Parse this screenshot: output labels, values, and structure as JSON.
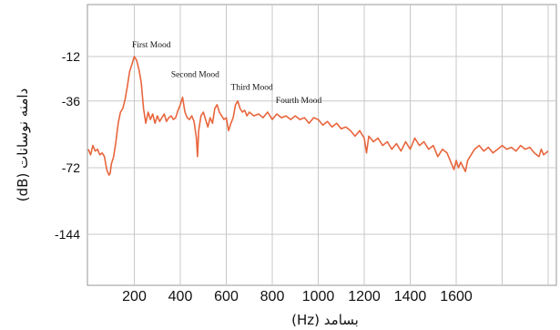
{
  "chart_data": {
    "type": "line",
    "title": "",
    "xlabel": "بسامد (Hz)",
    "ylabel": "دامنه نوسانات (dB)",
    "xlim": [
      0,
      2000
    ],
    "ylim": [
      -170,
      0
    ],
    "grid": true,
    "series": [
      {
        "color": "#e8663d",
        "points": [
          [
            0,
            -62
          ],
          [
            10,
            -65
          ],
          [
            20,
            -60
          ],
          [
            30,
            -63
          ],
          [
            40,
            -62
          ],
          [
            50,
            -65
          ],
          [
            60,
            -64
          ],
          [
            70,
            -66
          ],
          [
            80,
            -74
          ],
          [
            90,
            -80
          ],
          [
            95,
            -78
          ],
          [
            100,
            -70
          ],
          [
            110,
            -66
          ],
          [
            120,
            -58
          ],
          [
            130,
            -48
          ],
          [
            140,
            -42
          ],
          [
            150,
            -40
          ],
          [
            160,
            -35
          ],
          [
            170,
            -28
          ],
          [
            180,
            -20
          ],
          [
            190,
            -16
          ],
          [
            200,
            -12
          ],
          [
            210,
            -14
          ],
          [
            220,
            -19
          ],
          [
            230,
            -26
          ],
          [
            240,
            -40
          ],
          [
            250,
            -48
          ],
          [
            260,
            -42
          ],
          [
            270,
            -46
          ],
          [
            280,
            -43
          ],
          [
            290,
            -48
          ],
          [
            300,
            -44
          ],
          [
            310,
            -47
          ],
          [
            320,
            -45
          ],
          [
            330,
            -43
          ],
          [
            340,
            -47
          ],
          [
            350,
            -45
          ],
          [
            360,
            -44
          ],
          [
            370,
            -46
          ],
          [
            380,
            -45
          ],
          [
            390,
            -41
          ],
          [
            400,
            -38
          ],
          [
            410,
            -34
          ],
          [
            420,
            -42
          ],
          [
            430,
            -45
          ],
          [
            440,
            -46
          ],
          [
            450,
            -44
          ],
          [
            460,
            -47
          ],
          [
            470,
            -56
          ],
          [
            475,
            -66
          ],
          [
            480,
            -52
          ],
          [
            490,
            -44
          ],
          [
            500,
            -42
          ],
          [
            510,
            -46
          ],
          [
            520,
            -50
          ],
          [
            530,
            -45
          ],
          [
            540,
            -48
          ],
          [
            550,
            -40
          ],
          [
            560,
            -38
          ],
          [
            570,
            -42
          ],
          [
            580,
            -44
          ],
          [
            590,
            -46
          ],
          [
            600,
            -45
          ],
          [
            610,
            -52
          ],
          [
            620,
            -48
          ],
          [
            630,
            -45
          ],
          [
            640,
            -38
          ],
          [
            650,
            -36
          ],
          [
            660,
            -40
          ],
          [
            670,
            -42
          ],
          [
            680,
            -41
          ],
          [
            690,
            -44
          ],
          [
            700,
            -42
          ],
          [
            720,
            -44
          ],
          [
            740,
            -43
          ],
          [
            760,
            -45
          ],
          [
            780,
            -42
          ],
          [
            800,
            -46
          ],
          [
            820,
            -43
          ],
          [
            840,
            -45
          ],
          [
            860,
            -44
          ],
          [
            880,
            -46
          ],
          [
            900,
            -44
          ],
          [
            920,
            -46
          ],
          [
            940,
            -45
          ],
          [
            960,
            -48
          ],
          [
            980,
            -45
          ],
          [
            1000,
            -46
          ],
          [
            1020,
            -49
          ],
          [
            1040,
            -47
          ],
          [
            1060,
            -50
          ],
          [
            1080,
            -48
          ],
          [
            1100,
            -51
          ],
          [
            1120,
            -50
          ],
          [
            1140,
            -52
          ],
          [
            1160,
            -55
          ],
          [
            1180,
            -52
          ],
          [
            1200,
            -56
          ],
          [
            1210,
            -64
          ],
          [
            1220,
            -55
          ],
          [
            1240,
            -58
          ],
          [
            1260,
            -56
          ],
          [
            1280,
            -60
          ],
          [
            1300,
            -58
          ],
          [
            1320,
            -62
          ],
          [
            1340,
            -59
          ],
          [
            1360,
            -63
          ],
          [
            1380,
            -58
          ],
          [
            1400,
            -62
          ],
          [
            1420,
            -56
          ],
          [
            1440,
            -60
          ],
          [
            1460,
            -58
          ],
          [
            1480,
            -62
          ],
          [
            1500,
            -60
          ],
          [
            1520,
            -66
          ],
          [
            1540,
            -62
          ],
          [
            1560,
            -64
          ],
          [
            1580,
            -70
          ],
          [
            1590,
            -74
          ],
          [
            1600,
            -68
          ],
          [
            1610,
            -72
          ],
          [
            1620,
            -69
          ],
          [
            1640,
            -76
          ],
          [
            1650,
            -68
          ],
          [
            1660,
            -66
          ],
          [
            1670,
            -64
          ],
          [
            1680,
            -62
          ],
          [
            1700,
            -60
          ],
          [
            1720,
            -63
          ],
          [
            1740,
            -61
          ],
          [
            1760,
            -64
          ],
          [
            1780,
            -62
          ],
          [
            1800,
            -60
          ],
          [
            1820,
            -62
          ],
          [
            1840,
            -61
          ],
          [
            1860,
            -63
          ],
          [
            1880,
            -60
          ],
          [
            1900,
            -62
          ],
          [
            1920,
            -61
          ],
          [
            1940,
            -64
          ],
          [
            1960,
            -66
          ],
          [
            1970,
            -62
          ],
          [
            1980,
            -65
          ],
          [
            2000,
            -63
          ]
        ]
      }
    ],
    "y_ticks": [
      -12,
      -36,
      -72,
      -144
    ],
    "x_ticks": [
      200,
      400,
      600,
      800,
      1000,
      1200,
      1400,
      1600
    ],
    "annotations": [
      {
        "text": "First Mood",
        "x": 190,
        "y": -5
      },
      {
        "text": "Second Mood",
        "x": 360,
        "y": -21
      },
      {
        "text": "Third Mood",
        "x": 620,
        "y": -28
      },
      {
        "text": "Fourth Mood",
        "x": 815,
        "y": -35
      }
    ]
  }
}
